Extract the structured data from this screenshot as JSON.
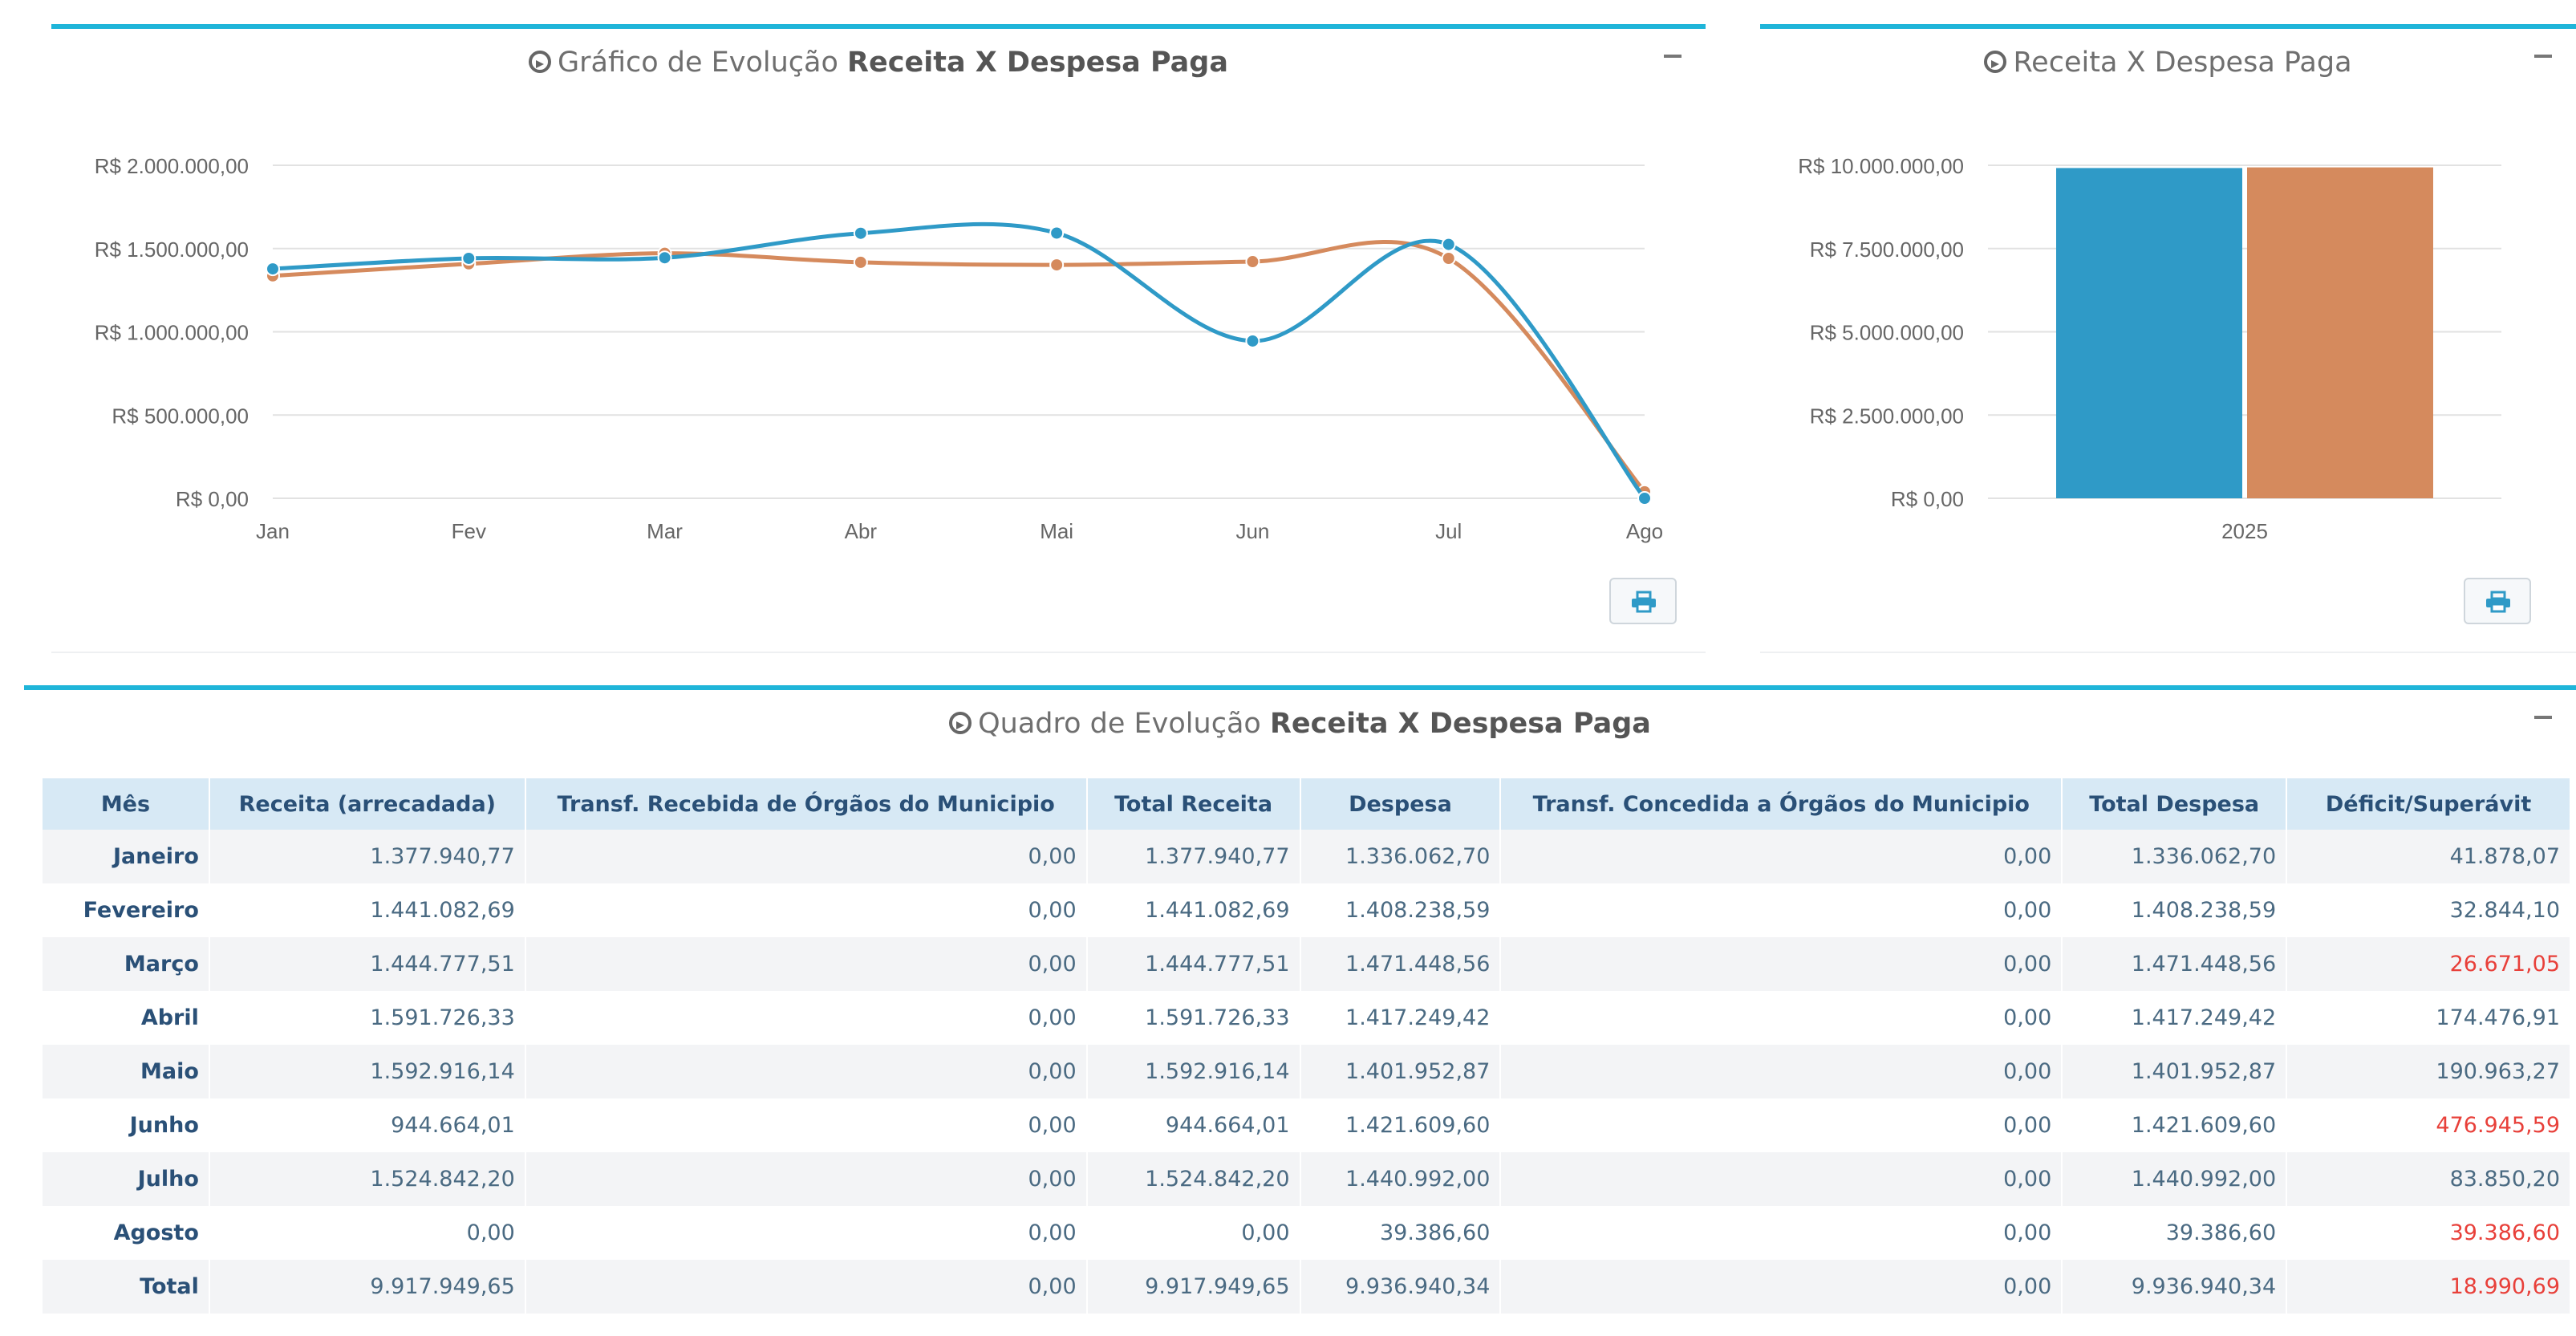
{
  "colors": {
    "accent": "#1fb5d9",
    "receita": "#2f9ac7",
    "despesa": "#d58a5d",
    "negative": "#e8403a"
  },
  "line_panel": {
    "title_prefix": "Gráfico de Evolução ",
    "title_bold": "Receita X Despesa Paga",
    "icon": "arrow-circle-right-icon"
  },
  "bar_panel": {
    "title": "Receita X Despesa Paga",
    "icon": "arrow-circle-right-icon"
  },
  "table_panel": {
    "title_prefix": "Quadro de Evolução ",
    "title_bold": "Receita X Despesa Paga",
    "icon": "arrow-circle-right-icon"
  },
  "chart_data": [
    {
      "type": "line",
      "categories": [
        "Jan",
        "Fev",
        "Mar",
        "Abr",
        "Mai",
        "Jun",
        "Jul",
        "Ago"
      ],
      "ylim": [
        0,
        2000000
      ],
      "yticks": [
        "R$ 0,00",
        "R$ 500.000,00",
        "R$ 1.000.000,00",
        "R$ 1.500.000,00",
        "R$ 2.000.000,00"
      ],
      "grid": true,
      "series": [
        {
          "values": [
            1377940.77,
            1441082.69,
            1444777.51,
            1591726.33,
            1592916.14,
            944664.01,
            1524842.2,
            0
          ]
        },
        {
          "values": [
            1336062.7,
            1408238.59,
            1471448.56,
            1417249.42,
            1401952.87,
            1421609.6,
            1440992.0,
            39386.6
          ]
        }
      ]
    },
    {
      "type": "bar",
      "categories": [
        "2025"
      ],
      "ylim": [
        0,
        10000000
      ],
      "yticks": [
        "R$ 0,00",
        "R$ 2.500.000,00",
        "R$ 5.000.000,00",
        "R$ 7.500.000,00",
        "R$ 10.000.000,00"
      ],
      "grid": true,
      "series": [
        {
          "values": [
            9917949.65
          ]
        },
        {
          "values": [
            9936940.34
          ]
        }
      ]
    }
  ],
  "table": {
    "headers": [
      "Mês",
      "Receita (arrecadada)",
      "Transf. Recebida de Órgãos do Municipio",
      "Total Receita",
      "Despesa",
      "Transf. Concedida a Órgãos do Municipio",
      "Total Despesa",
      "Déficit/Superávit"
    ],
    "rows": [
      {
        "cells": [
          "Janeiro",
          "1.377.940,77",
          "0,00",
          "1.377.940,77",
          "1.336.062,70",
          "0,00",
          "1.336.062,70",
          "41.878,07"
        ],
        "negative": false
      },
      {
        "cells": [
          "Fevereiro",
          "1.441.082,69",
          "0,00",
          "1.441.082,69",
          "1.408.238,59",
          "0,00",
          "1.408.238,59",
          "32.844,10"
        ],
        "negative": false
      },
      {
        "cells": [
          "Março",
          "1.444.777,51",
          "0,00",
          "1.444.777,51",
          "1.471.448,56",
          "0,00",
          "1.471.448,56",
          "26.671,05"
        ],
        "negative": true
      },
      {
        "cells": [
          "Abril",
          "1.591.726,33",
          "0,00",
          "1.591.726,33",
          "1.417.249,42",
          "0,00",
          "1.417.249,42",
          "174.476,91"
        ],
        "negative": false
      },
      {
        "cells": [
          "Maio",
          "1.592.916,14",
          "0,00",
          "1.592.916,14",
          "1.401.952,87",
          "0,00",
          "1.401.952,87",
          "190.963,27"
        ],
        "negative": false
      },
      {
        "cells": [
          "Junho",
          "944.664,01",
          "0,00",
          "944.664,01",
          "1.421.609,60",
          "0,00",
          "1.421.609,60",
          "476.945,59"
        ],
        "negative": true
      },
      {
        "cells": [
          "Julho",
          "1.524.842,20",
          "0,00",
          "1.524.842,20",
          "1.440.992,00",
          "0,00",
          "1.440.992,00",
          "83.850,20"
        ],
        "negative": false
      },
      {
        "cells": [
          "Agosto",
          "0,00",
          "0,00",
          "0,00",
          "39.386,60",
          "0,00",
          "39.386,60",
          "39.386,60"
        ],
        "negative": true
      },
      {
        "cells": [
          "Total",
          "9.917.949,65",
          "0,00",
          "9.917.949,65",
          "9.936.940,34",
          "0,00",
          "9.936.940,34",
          "18.990,69"
        ],
        "negative": true
      }
    ]
  }
}
